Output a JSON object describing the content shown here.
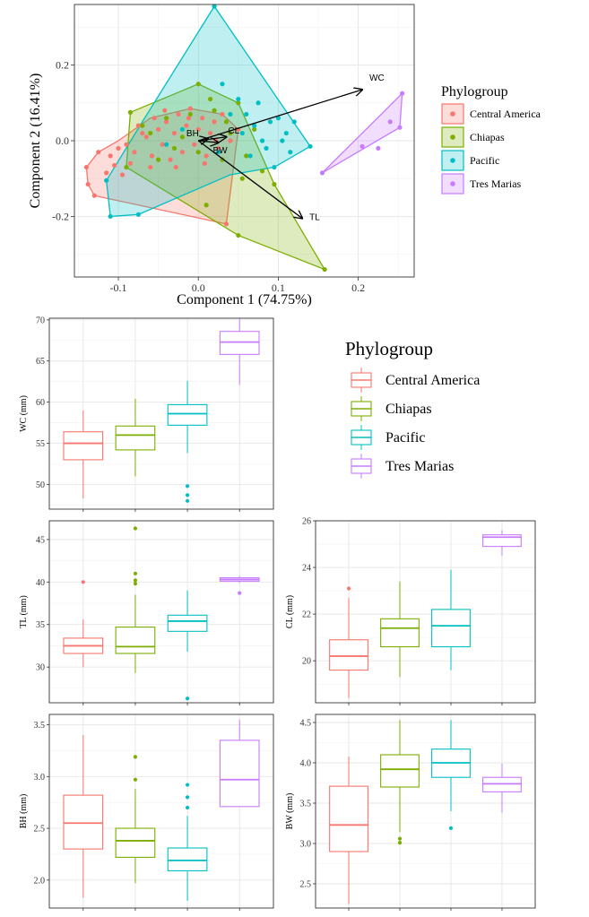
{
  "colors": {
    "Central America": "#F8766D",
    "Chiapas": "#7CAE00",
    "Pacific": "#00BFC4",
    "Tres Marias": "#C77CFF"
  },
  "chart_data": [
    {
      "id": "pca",
      "type": "scatter",
      "xlabel": "Component 1 (74.75%)",
      "ylabel": "Component 2 (16.41%)",
      "xlim": [
        -0.155,
        0.27
      ],
      "ylim": [
        -0.36,
        0.36
      ],
      "xticks": [
        -0.1,
        0.0,
        0.1,
        0.2
      ],
      "xtick_labels": [
        "-0.1",
        "0.0",
        "0.1",
        "0.2"
      ],
      "yticks": [
        -0.2,
        0.0,
        0.2
      ],
      "ytick_labels": [
        "-0.2",
        "0.0",
        "0.2"
      ],
      "legend": {
        "title": "Phylogroup",
        "position": "right"
      },
      "vectors": [
        {
          "label": "WC",
          "x": 0.205,
          "y": 0.135
        },
        {
          "label": "TL",
          "x": 0.13,
          "y": -0.205
        },
        {
          "label": "CL",
          "x": 0.035,
          "y": 0.01
        },
        {
          "label": "BW",
          "x": 0.025,
          "y": -0.005
        },
        {
          "label": "BH",
          "x": 0.012,
          "y": 0.005
        }
      ],
      "series": [
        {
          "name": "Central America",
          "hull": [
            [
              -0.14,
              -0.07
            ],
            [
              -0.125,
              -0.03
            ],
            [
              -0.1,
              0.0
            ],
            [
              -0.06,
              0.06
            ],
            [
              -0.01,
              0.085
            ],
            [
              0.03,
              0.07
            ],
            [
              0.05,
              0.03
            ],
            [
              0.035,
              -0.22
            ],
            [
              -0.13,
              -0.145
            ],
            [
              -0.138,
              -0.115
            ]
          ],
          "points": [
            [
              -0.14,
              -0.07
            ],
            [
              -0.125,
              -0.03
            ],
            [
              -0.13,
              -0.145
            ],
            [
              -0.138,
              -0.115
            ],
            [
              -0.11,
              -0.04
            ],
            [
              -0.1,
              -0.02
            ],
            [
              -0.095,
              -0.09
            ],
            [
              -0.085,
              -0.06
            ],
            [
              -0.08,
              -0.03
            ],
            [
              -0.07,
              0.02
            ],
            [
              -0.06,
              -0.07
            ],
            [
              -0.055,
              0.06
            ],
            [
              -0.05,
              0.03
            ],
            [
              -0.045,
              -0.01
            ],
            [
              -0.04,
              0.05
            ],
            [
              -0.035,
              -0.05
            ],
            [
              -0.03,
              0.02
            ],
            [
              -0.025,
              0.07
            ],
            [
              -0.02,
              -0.03
            ],
            [
              -0.015,
              0.04
            ],
            [
              -0.01,
              0.085
            ],
            [
              -0.005,
              -0.01
            ],
            [
              0.0,
              0.03
            ],
            [
              0.005,
              0.06
            ],
            [
              0.01,
              -0.04
            ],
            [
              0.015,
              0.02
            ],
            [
              0.02,
              0.05
            ],
            [
              0.025,
              -0.02
            ],
            [
              0.03,
              0.07
            ],
            [
              0.035,
              -0.22
            ],
            [
              0.04,
              0.0
            ],
            [
              0.05,
              0.03
            ],
            [
              -0.065,
              0.01
            ],
            [
              -0.075,
              0.04
            ],
            [
              -0.09,
              -0.01
            ],
            [
              -0.058,
              -0.04
            ],
            [
              -0.042,
              0.08
            ],
            [
              -0.028,
              -0.07
            ],
            [
              -0.012,
              0.06
            ],
            [
              0.008,
              -0.06
            ],
            [
              0.022,
              0.0
            ],
            [
              -0.105,
              -0.065
            ],
            [
              -0.115,
              -0.085
            ]
          ]
        },
        {
          "name": "Chiapas",
          "hull": [
            [
              -0.085,
              0.075
            ],
            [
              0.0,
              0.15
            ],
            [
              0.05,
              0.1
            ],
            [
              0.095,
              -0.115
            ],
            [
              0.158,
              -0.34
            ],
            [
              0.05,
              -0.25
            ],
            [
              -0.09,
              -0.07
            ]
          ],
          "points": [
            [
              -0.085,
              0.075
            ],
            [
              0.0,
              0.15
            ],
            [
              0.05,
              0.1
            ],
            [
              0.095,
              -0.115
            ],
            [
              0.158,
              -0.34
            ],
            [
              0.05,
              -0.25
            ],
            [
              -0.09,
              -0.07
            ],
            [
              0.01,
              -0.17
            ],
            [
              -0.06,
              0.02
            ],
            [
              -0.04,
              0.06
            ],
            [
              -0.02,
              0.01
            ],
            [
              0.0,
              -0.03
            ],
            [
              0.02,
              0.08
            ],
            [
              0.03,
              -0.05
            ],
            [
              0.04,
              0.02
            ],
            [
              0.06,
              -0.04
            ],
            [
              0.07,
              0.03
            ],
            [
              0.08,
              -0.08
            ],
            [
              -0.03,
              -0.02
            ],
            [
              -0.05,
              -0.05
            ],
            [
              0.015,
              0.11
            ],
            [
              0.035,
              0.05
            ],
            [
              -0.07,
              0.04
            ],
            [
              0.055,
              -0.1
            ],
            [
              -0.01,
              0.07
            ]
          ]
        },
        {
          "name": "Pacific",
          "hull": [
            [
              -0.115,
              -0.105
            ],
            [
              -0.07,
              0.05
            ],
            [
              0.02,
              0.355
            ],
            [
              0.14,
              -0.015
            ],
            [
              0.095,
              -0.07
            ],
            [
              0.04,
              -0.09
            ],
            [
              -0.075,
              -0.195
            ],
            [
              -0.11,
              -0.2
            ]
          ],
          "points": [
            [
              0.02,
              0.355
            ],
            [
              0.03,
              0.15
            ],
            [
              0.14,
              -0.015
            ],
            [
              0.095,
              -0.07
            ],
            [
              -0.075,
              -0.195
            ],
            [
              -0.11,
              -0.2
            ],
            [
              -0.115,
              -0.105
            ],
            [
              0.06,
              0.07
            ],
            [
              0.07,
              0.04
            ],
            [
              0.08,
              0.0
            ],
            [
              0.09,
              0.05
            ],
            [
              0.1,
              0.06
            ],
            [
              0.11,
              0.02
            ],
            [
              0.12,
              0.05
            ],
            [
              0.05,
              0.11
            ],
            [
              0.04,
              0.07
            ],
            [
              0.065,
              -0.04
            ],
            [
              0.085,
              -0.02
            ],
            [
              0.105,
              0.0
            ],
            [
              0.115,
              -0.03
            ],
            [
              0.075,
              0.1
            ],
            [
              0.055,
              0.02
            ],
            [
              -0.02,
              0.03
            ],
            [
              -0.04,
              -0.01
            ],
            [
              0.025,
              -0.03
            ]
          ]
        },
        {
          "name": "Tres Marias",
          "hull": [
            [
              0.155,
              -0.085
            ],
            [
              0.255,
              0.125
            ],
            [
              0.252,
              0.035
            ]
          ],
          "points": [
            [
              0.255,
              0.125
            ],
            [
              0.252,
              0.035
            ],
            [
              0.24,
              0.05
            ],
            [
              0.225,
              -0.02
            ],
            [
              0.205,
              -0.015
            ],
            [
              0.155,
              -0.085
            ]
          ]
        }
      ]
    },
    {
      "id": "wc",
      "type": "box",
      "ylabel": "WC (mm)",
      "ylim": [
        47,
        70.2
      ],
      "yticks": [
        50,
        55,
        60,
        65,
        70
      ],
      "ytick_labels": [
        "50",
        "55",
        "60",
        "65",
        "70"
      ],
      "legend": {
        "title": "Phylogroup",
        "position": "right"
      },
      "boxes": [
        {
          "group": "Central America",
          "min": 48.3,
          "q1": 53.0,
          "median": 55.0,
          "q3": 56.4,
          "max": 59.0,
          "outliers": []
        },
        {
          "group": "Chiapas",
          "min": 51.0,
          "q1": 54.2,
          "median": 56.0,
          "q3": 57.1,
          "max": 60.4,
          "outliers": []
        },
        {
          "group": "Pacific",
          "min": 53.8,
          "q1": 57.2,
          "median": 58.6,
          "q3": 59.7,
          "max": 62.6,
          "outliers": [
            49.8,
            48.7,
            48.0
          ]
        },
        {
          "group": "Tres Marias",
          "min": 62.1,
          "q1": 65.8,
          "median": 67.3,
          "q3": 68.6,
          "max": 70.2,
          "outliers": []
        }
      ]
    },
    {
      "id": "tl",
      "type": "box",
      "ylabel": "TL (mm)",
      "ylim": [
        25.8,
        47.2
      ],
      "yticks": [
        30,
        35,
        40,
        45
      ],
      "ytick_labels": [
        "30",
        "35",
        "40",
        "45"
      ],
      "boxes": [
        {
          "group": "Central America",
          "min": 30.0,
          "q1": 31.6,
          "median": 32.5,
          "q3": 33.4,
          "max": 35.6,
          "outliers": [
            40.0
          ]
        },
        {
          "group": "Chiapas",
          "min": 29.3,
          "q1": 31.6,
          "median": 32.4,
          "q3": 34.7,
          "max": 38.5,
          "outliers": [
            39.8,
            40.2,
            41.0,
            46.3
          ]
        },
        {
          "group": "Pacific",
          "min": 31.8,
          "q1": 34.2,
          "median": 35.4,
          "q3": 36.1,
          "max": 39.0,
          "outliers": [
            26.3
          ]
        },
        {
          "group": "Tres Marias",
          "min": 39.9,
          "q1": 40.1,
          "median": 40.3,
          "q3": 40.5,
          "max": 40.7,
          "outliers": [
            38.7
          ]
        }
      ]
    },
    {
      "id": "cl",
      "type": "box",
      "ylabel": "CL (mm)",
      "ylim": [
        18.2,
        26.0
      ],
      "yticks": [
        20,
        22,
        24,
        26
      ],
      "ytick_labels": [
        "20",
        "22",
        "24",
        "26"
      ],
      "boxes": [
        {
          "group": "Central America",
          "min": 18.4,
          "q1": 19.6,
          "median": 20.2,
          "q3": 20.9,
          "max": 22.7,
          "outliers": [
            23.1
          ]
        },
        {
          "group": "Chiapas",
          "min": 19.3,
          "q1": 20.6,
          "median": 21.4,
          "q3": 21.8,
          "max": 23.4,
          "outliers": []
        },
        {
          "group": "Pacific",
          "min": 19.6,
          "q1": 20.6,
          "median": 21.5,
          "q3": 22.2,
          "max": 23.9,
          "outliers": []
        },
        {
          "group": "Tres Marias",
          "min": 24.5,
          "q1": 24.9,
          "median": 25.3,
          "q3": 25.4,
          "max": 25.6,
          "outliers": []
        }
      ]
    },
    {
      "id": "bh",
      "type": "box",
      "ylabel": "BH (mm)",
      "ylim": [
        1.73,
        3.6
      ],
      "yticks": [
        2.0,
        2.5,
        3.0,
        3.5
      ],
      "ytick_labels": [
        "2.0",
        "2.5",
        "3.0",
        "3.5"
      ],
      "boxes": [
        {
          "group": "Central America",
          "min": 1.83,
          "q1": 2.3,
          "median": 2.55,
          "q3": 2.82,
          "max": 3.4,
          "outliers": []
        },
        {
          "group": "Chiapas",
          "min": 1.97,
          "q1": 2.22,
          "median": 2.38,
          "q3": 2.5,
          "max": 2.88,
          "outliers": [
            2.97,
            3.19
          ]
        },
        {
          "group": "Pacific",
          "min": 1.8,
          "q1": 2.09,
          "median": 2.19,
          "q3": 2.31,
          "max": 2.62,
          "outliers": [
            2.7,
            2.8,
            2.92
          ]
        },
        {
          "group": "Tres Marias",
          "min": 2.71,
          "q1": 2.71,
          "median": 2.97,
          "q3": 3.35,
          "max": 3.55,
          "outliers": []
        }
      ]
    },
    {
      "id": "bw",
      "type": "box",
      "ylabel": "BW (mm)",
      "ylim": [
        2.2,
        4.6
      ],
      "yticks": [
        2.5,
        3.0,
        3.5,
        4.0,
        4.5
      ],
      "ytick_labels": [
        "2.5",
        "3.0",
        "3.5",
        "4.0",
        "4.5"
      ],
      "boxes": [
        {
          "group": "Central America",
          "min": 2.25,
          "q1": 2.9,
          "median": 3.23,
          "q3": 3.71,
          "max": 4.08,
          "outliers": []
        },
        {
          "group": "Chiapas",
          "min": 3.14,
          "q1": 3.7,
          "median": 3.92,
          "q3": 4.1,
          "max": 4.53,
          "outliers": [
            3.06,
            3.01
          ]
        },
        {
          "group": "Pacific",
          "min": 3.4,
          "q1": 3.82,
          "median": 4.0,
          "q3": 4.17,
          "max": 4.53,
          "outliers": [
            3.19
          ]
        },
        {
          "group": "Tres Marias",
          "min": 3.38,
          "q1": 3.64,
          "median": 3.74,
          "q3": 3.82,
          "max": 3.99,
          "outliers": []
        }
      ]
    }
  ]
}
